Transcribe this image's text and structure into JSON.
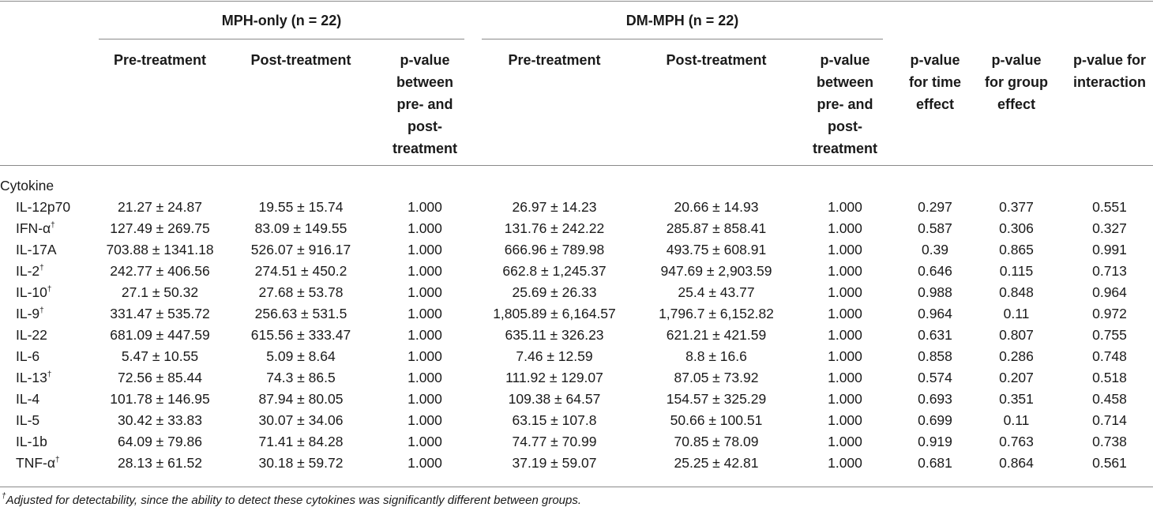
{
  "groups": {
    "mph_only": "MPH-only (n = 22)",
    "dm_mph": "DM-MPH (n = 22)"
  },
  "columns": {
    "pre": "Pre-treatment",
    "post": "Post-treatment",
    "pval_prepost": "p-value between pre- and post-treatment",
    "pval_time": "p-value for time effect",
    "pval_group": "p-value for group effect",
    "pval_interaction": "p-value for interaction"
  },
  "section_label": "Cytokine",
  "rows": [
    {
      "name": "IL-12p70",
      "dagger": false,
      "mph_pre": "21.27 ± 24.87",
      "mph_post": "19.55 ± 15.74",
      "mph_p": "1.000",
      "dm_pre": "26.97 ± 14.23",
      "dm_post": "20.66 ± 14.93",
      "dm_p": "1.000",
      "p_time": "0.297",
      "p_group": "0.377",
      "p_inter": "0.551"
    },
    {
      "name": "IFN-α",
      "dagger": true,
      "mph_pre": "127.49 ± 269.75",
      "mph_post": "83.09 ± 149.55",
      "mph_p": "1.000",
      "dm_pre": "131.76 ± 242.22",
      "dm_post": "285.87 ± 858.41",
      "dm_p": "1.000",
      "p_time": "0.587",
      "p_group": "0.306",
      "p_inter": "0.327"
    },
    {
      "name": "IL-17A",
      "dagger": false,
      "mph_pre": "703.88 ± 1341.18",
      "mph_post": "526.07 ± 916.17",
      "mph_p": "1.000",
      "dm_pre": "666.96 ± 789.98",
      "dm_post": "493.75 ± 608.91",
      "dm_p": "1.000",
      "p_time": "0.39",
      "p_group": "0.865",
      "p_inter": "0.991"
    },
    {
      "name": "IL-2",
      "dagger": true,
      "mph_pre": "242.77 ± 406.56",
      "mph_post": "274.51 ± 450.2",
      "mph_p": "1.000",
      "dm_pre": "662.8 ± 1,245.37",
      "dm_post": "947.69 ± 2,903.59",
      "dm_p": "1.000",
      "p_time": "0.646",
      "p_group": "0.115",
      "p_inter": "0.713"
    },
    {
      "name": "IL-10",
      "dagger": true,
      "mph_pre": "27.1 ± 50.32",
      "mph_post": "27.68 ± 53.78",
      "mph_p": "1.000",
      "dm_pre": "25.69 ± 26.33",
      "dm_post": "25.4 ± 43.77",
      "dm_p": "1.000",
      "p_time": "0.988",
      "p_group": "0.848",
      "p_inter": "0.964"
    },
    {
      "name": "IL-9",
      "dagger": true,
      "mph_pre": "331.47 ± 535.72",
      "mph_post": "256.63 ± 531.5",
      "mph_p": "1.000",
      "dm_pre": "1,805.89 ± 6,164.57",
      "dm_post": "1,796.7 ± 6,152.82",
      "dm_p": "1.000",
      "p_time": "0.964",
      "p_group": "0.11",
      "p_inter": "0.972"
    },
    {
      "name": "IL-22",
      "dagger": false,
      "mph_pre": "681.09 ± 447.59",
      "mph_post": "615.56 ± 333.47",
      "mph_p": "1.000",
      "dm_pre": "635.11 ± 326.23",
      "dm_post": "621.21 ± 421.59",
      "dm_p": "1.000",
      "p_time": "0.631",
      "p_group": "0.807",
      "p_inter": "0.755"
    },
    {
      "name": "IL-6",
      "dagger": false,
      "mph_pre": "5.47 ± 10.55",
      "mph_post": "5.09 ± 8.64",
      "mph_p": "1.000",
      "dm_pre": "7.46 ± 12.59",
      "dm_post": "8.8 ± 16.6",
      "dm_p": "1.000",
      "p_time": "0.858",
      "p_group": "0.286",
      "p_inter": "0.748"
    },
    {
      "name": "IL-13",
      "dagger": true,
      "mph_pre": "72.56 ± 85.44",
      "mph_post": "74.3 ± 86.5",
      "mph_p": "1.000",
      "dm_pre": "111.92 ± 129.07",
      "dm_post": "87.05 ± 73.92",
      "dm_p": "1.000",
      "p_time": "0.574",
      "p_group": "0.207",
      "p_inter": "0.518"
    },
    {
      "name": "IL-4",
      "dagger": false,
      "mph_pre": "101.78 ± 146.95",
      "mph_post": "87.94 ± 80.05",
      "mph_p": "1.000",
      "dm_pre": "109.38 ± 64.57",
      "dm_post": "154.57 ± 325.29",
      "dm_p": "1.000",
      "p_time": "0.693",
      "p_group": "0.351",
      "p_inter": "0.458"
    },
    {
      "name": "IL-5",
      "dagger": false,
      "mph_pre": "30.42 ± 33.83",
      "mph_post": "30.07 ± 34.06",
      "mph_p": "1.000",
      "dm_pre": "63.15 ± 107.8",
      "dm_post": "50.66 ± 100.51",
      "dm_p": "1.000",
      "p_time": "0.699",
      "p_group": "0.11",
      "p_inter": "0.714"
    },
    {
      "name": "IL-1b",
      "dagger": false,
      "mph_pre": "64.09 ± 79.86",
      "mph_post": "71.41 ± 84.28",
      "mph_p": "1.000",
      "dm_pre": "74.77 ± 70.99",
      "dm_post": "70.85 ± 78.09",
      "dm_p": "1.000",
      "p_time": "0.919",
      "p_group": "0.763",
      "p_inter": "0.738"
    },
    {
      "name": "TNF-α",
      "dagger": true,
      "mph_pre": "28.13 ± 61.52",
      "mph_post": "30.18 ± 59.72",
      "mph_p": "1.000",
      "dm_pre": "37.19 ± 59.07",
      "dm_post": "25.25 ± 42.81",
      "dm_p": "1.000",
      "p_time": "0.681",
      "p_group": "0.864",
      "p_inter": "0.561"
    }
  ],
  "dagger_symbol": "†",
  "footnote": "Adjusted for detectability, since the ability to detect these cytokines was significantly different between groups."
}
